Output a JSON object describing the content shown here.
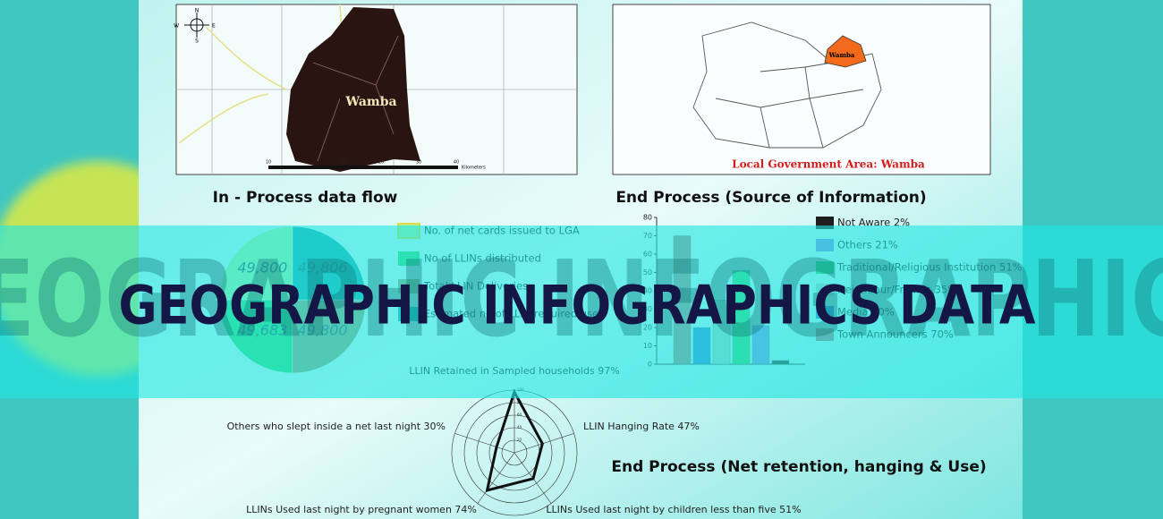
{
  "banner_title": "GEOGRAPHIC INFOGRAPHICS DATA",
  "watermark": "GEOGRAPHIC INFOGRAPHICS",
  "map_left": {
    "compass": [
      "N",
      "E",
      "S",
      "W"
    ],
    "label": "Wamba",
    "scale_labels": [
      "10",
      "0",
      "10",
      "20",
      "30",
      "40"
    ],
    "scale_unit": "Kilometers"
  },
  "map_right": {
    "label": "Wamba",
    "caption": "Local Government Area:  Wamba"
  },
  "chart_data": [
    {
      "type": "pie",
      "title": "In - Process data flow",
      "series": [
        {
          "name": "No. of net cards issued to LGA",
          "color": "#b4f09a",
          "value": 49800,
          "value_label": "49,800"
        },
        {
          "name": "No of LLINs distributed",
          "color": "#38d86a",
          "value": 49683,
          "value_label": "49,683"
        },
        {
          "name": "Total LLIN Deliveries",
          "color": "#a09a6c",
          "value": 49800,
          "value_label": "49,800"
        },
        {
          "name": "Estimated no of LLIN required used",
          "color": "#1aa2a6",
          "value": 49806,
          "value_label": "49,806"
        }
      ]
    },
    {
      "type": "bar",
      "title": "End Process (Source of Information)",
      "categories": [
        "Town Announcers 70%",
        "Media 20%",
        "Neighbour/Friends 35%",
        "Traditional/Religious Institution 51%",
        "Others 21%",
        "Not Aware 2%"
      ],
      "values": [
        70,
        20,
        35,
        51,
        21,
        2
      ],
      "colors": [
        "#a87474",
        "#2d6fd8",
        "#a8ccb8",
        "#2ccf5a",
        "#8080e4",
        "#1e1e1e"
      ],
      "ylim": [
        0,
        80
      ],
      "yticks": [
        0,
        10,
        20,
        30,
        40,
        50,
        60,
        70,
        80
      ]
    },
    {
      "type": "radar",
      "title": "End Process (Net retention, hanging & Use)",
      "categories": [
        "LLIN Retained in Sampled households 97%",
        "LLIN Hanging Rate 47%",
        "LLINs Used last night by children less than five 51%",
        "LLINs Used last night by pregnant women 74%",
        "Others who slept inside a net last night 30%"
      ],
      "values": [
        97,
        47,
        51,
        74,
        30
      ],
      "color": "#111111",
      "rlim": [
        0,
        100
      ],
      "rticks": [
        20,
        40,
        60,
        80,
        100
      ]
    }
  ]
}
